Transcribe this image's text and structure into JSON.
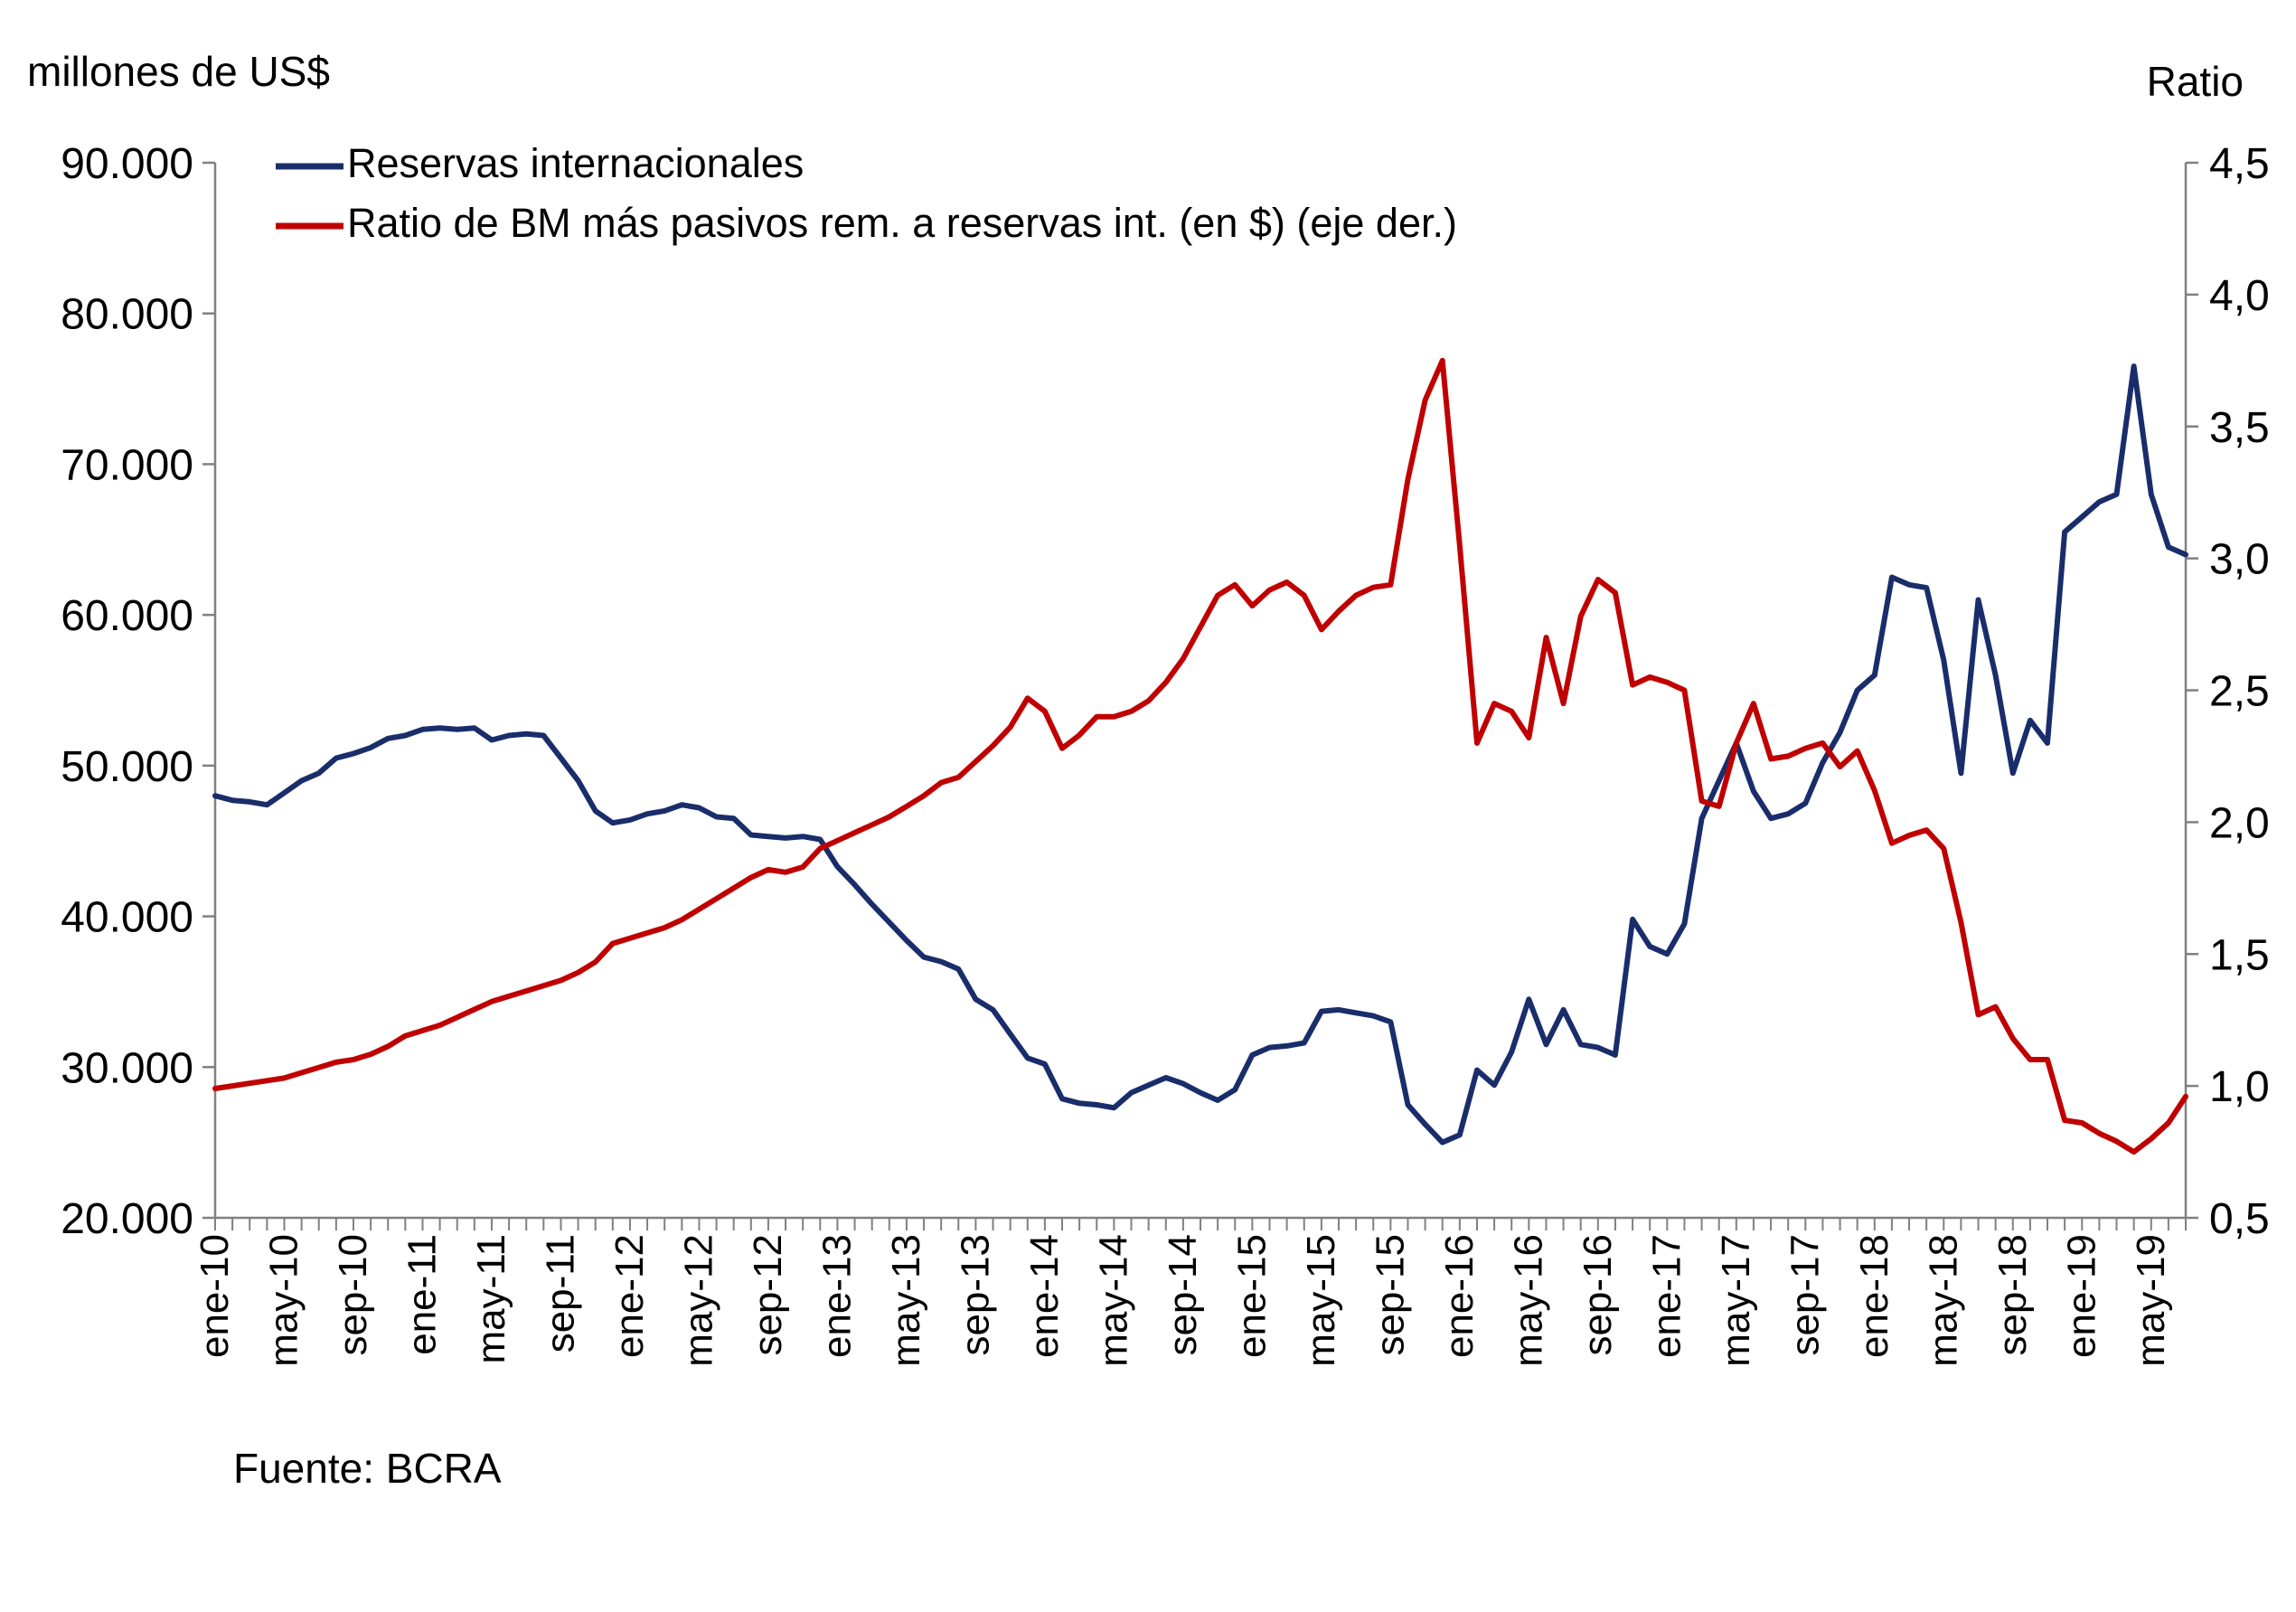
{
  "chart_data": {
    "type": "line",
    "left_axis_label": "millones de US$",
    "right_axis_label": "Ratio",
    "ylim_left": [
      20000,
      90000
    ],
    "ylim_right": [
      0.5,
      4.5
    ],
    "yticks_left": [
      "90.000",
      "80.000",
      "70.000",
      "60.000",
      "50.000",
      "40.000",
      "30.000",
      "20.000"
    ],
    "yticks_right": [
      "4,5",
      "4,0",
      "3,5",
      "3,0",
      "2,5",
      "2,0",
      "1,5",
      "1,0",
      "0,5"
    ],
    "x_range": [
      "2010-01",
      "2019-07"
    ],
    "xticks": [
      "ene-10",
      "may-10",
      "sep-10",
      "ene-11",
      "may-11",
      "sep-11",
      "ene-12",
      "may-12",
      "sep-12",
      "ene-13",
      "may-13",
      "sep-13",
      "ene-14",
      "may-14",
      "sep-14",
      "ene-15",
      "may-15",
      "sep-15",
      "ene-16",
      "may-16",
      "sep-16",
      "ene-17",
      "may-17",
      "sep-17",
      "ene-18",
      "may-18",
      "sep-18",
      "ene-19",
      "may-19"
    ],
    "legend_position": "top-left",
    "grid": false,
    "series": [
      {
        "name": "Reservas internacionales",
        "axis": "left",
        "color": "#1a2d6b",
        "points": [
          [
            "2010-01",
            48000
          ],
          [
            "2010-02",
            47700
          ],
          [
            "2010-03",
            47600
          ],
          [
            "2010-04",
            47400
          ],
          [
            "2010-05",
            48200
          ],
          [
            "2010-06",
            49000
          ],
          [
            "2010-07",
            49500
          ],
          [
            "2010-08",
            50500
          ],
          [
            "2010-09",
            50800
          ],
          [
            "2010-10",
            51200
          ],
          [
            "2010-11",
            51800
          ],
          [
            "2010-12",
            52000
          ],
          [
            "2011-01",
            52400
          ],
          [
            "2011-02",
            52500
          ],
          [
            "2011-03",
            52400
          ],
          [
            "2011-04",
            52500
          ],
          [
            "2011-05",
            51700
          ],
          [
            "2011-06",
            52000
          ],
          [
            "2011-07",
            52100
          ],
          [
            "2011-08",
            52000
          ],
          [
            "2011-09",
            50500
          ],
          [
            "2011-10",
            49000
          ],
          [
            "2011-11",
            47000
          ],
          [
            "2011-12",
            46200
          ],
          [
            "2012-01",
            46400
          ],
          [
            "2012-02",
            46800
          ],
          [
            "2012-03",
            47000
          ],
          [
            "2012-04",
            47400
          ],
          [
            "2012-05",
            47200
          ],
          [
            "2012-06",
            46600
          ],
          [
            "2012-07",
            46500
          ],
          [
            "2012-08",
            45400
          ],
          [
            "2012-09",
            45300
          ],
          [
            "2012-10",
            45200
          ],
          [
            "2012-11",
            45300
          ],
          [
            "2012-12",
            45100
          ],
          [
            "2013-01",
            43300
          ],
          [
            "2013-02",
            42100
          ],
          [
            "2013-03",
            40800
          ],
          [
            "2013-04",
            39600
          ],
          [
            "2013-05",
            38400
          ],
          [
            "2013-06",
            37300
          ],
          [
            "2013-07",
            37000
          ],
          [
            "2013-08",
            36500
          ],
          [
            "2013-09",
            34500
          ],
          [
            "2013-10",
            33800
          ],
          [
            "2013-11",
            32200
          ],
          [
            "2013-12",
            30600
          ],
          [
            "2014-01",
            30200
          ],
          [
            "2014-02",
            27900
          ],
          [
            "2014-03",
            27600
          ],
          [
            "2014-04",
            27500
          ],
          [
            "2014-05",
            27300
          ],
          [
            "2014-06",
            28300
          ],
          [
            "2014-07",
            28800
          ],
          [
            "2014-08",
            29300
          ],
          [
            "2014-09",
            28900
          ],
          [
            "2014-10",
            28300
          ],
          [
            "2014-11",
            27800
          ],
          [
            "2014-12",
            28500
          ],
          [
            "2015-01",
            30800
          ],
          [
            "2015-02",
            31300
          ],
          [
            "2015-03",
            31400
          ],
          [
            "2015-04",
            31600
          ],
          [
            "2015-05",
            33700
          ],
          [
            "2015-06",
            33800
          ],
          [
            "2015-07",
            33600
          ],
          [
            "2015-08",
            33400
          ],
          [
            "2015-09",
            33000
          ],
          [
            "2015-10",
            27500
          ],
          [
            "2015-11",
            26200
          ],
          [
            "2015-12",
            25000
          ],
          [
            "2016-01",
            25500
          ],
          [
            "2016-02",
            29800
          ],
          [
            "2016-03",
            28800
          ],
          [
            "2016-04",
            31000
          ],
          [
            "2016-05",
            34500
          ],
          [
            "2016-06",
            31500
          ],
          [
            "2016-07",
            33800
          ],
          [
            "2016-08",
            31500
          ],
          [
            "2016-09",
            31300
          ],
          [
            "2016-10",
            30800
          ],
          [
            "2016-11",
            39800
          ],
          [
            "2016-12",
            38000
          ],
          [
            "2017-01",
            37500
          ],
          [
            "2017-02",
            39500
          ],
          [
            "2017-03",
            46500
          ],
          [
            "2017-04",
            49000
          ],
          [
            "2017-05",
            51500
          ],
          [
            "2017-06",
            48300
          ],
          [
            "2017-07",
            46500
          ],
          [
            "2017-08",
            46800
          ],
          [
            "2017-09",
            47500
          ],
          [
            "2017-10",
            50200
          ],
          [
            "2017-11",
            52200
          ],
          [
            "2017-12",
            55000
          ],
          [
            "2018-01",
            56000
          ],
          [
            "2018-02",
            62500
          ],
          [
            "2018-03",
            62000
          ],
          [
            "2018-04",
            61800
          ],
          [
            "2018-05",
            57000
          ],
          [
            "2018-06",
            49500
          ],
          [
            "2018-07",
            61000
          ],
          [
            "2018-08",
            56000
          ],
          [
            "2018-09",
            49500
          ],
          [
            "2018-10",
            53000
          ],
          [
            "2018-11",
            51500
          ],
          [
            "2018-12",
            65500
          ],
          [
            "2019-01",
            66500
          ],
          [
            "2019-02",
            67500
          ],
          [
            "2019-03",
            68000
          ],
          [
            "2019-04",
            76500
          ],
          [
            "2019-05",
            68000
          ],
          [
            "2019-06",
            64500
          ],
          [
            "2019-07",
            64000
          ]
        ]
      },
      {
        "name": "Ratio de BM más pasivos rem. a reservas int. (en $) (eje der.)",
        "axis": "right",
        "color": "#c00000",
        "points": [
          [
            "2010-01",
            0.99
          ],
          [
            "2010-02",
            1.0
          ],
          [
            "2010-03",
            1.01
          ],
          [
            "2010-04",
            1.02
          ],
          [
            "2010-05",
            1.03
          ],
          [
            "2010-06",
            1.05
          ],
          [
            "2010-07",
            1.07
          ],
          [
            "2010-08",
            1.09
          ],
          [
            "2010-09",
            1.1
          ],
          [
            "2010-10",
            1.12
          ],
          [
            "2010-11",
            1.15
          ],
          [
            "2010-12",
            1.19
          ],
          [
            "2011-01",
            1.21
          ],
          [
            "2011-02",
            1.23
          ],
          [
            "2011-03",
            1.26
          ],
          [
            "2011-04",
            1.29
          ],
          [
            "2011-05",
            1.32
          ],
          [
            "2011-06",
            1.34
          ],
          [
            "2011-07",
            1.36
          ],
          [
            "2011-08",
            1.38
          ],
          [
            "2011-09",
            1.4
          ],
          [
            "2011-10",
            1.43
          ],
          [
            "2011-11",
            1.47
          ],
          [
            "2011-12",
            1.54
          ],
          [
            "2012-01",
            1.56
          ],
          [
            "2012-02",
            1.58
          ],
          [
            "2012-03",
            1.6
          ],
          [
            "2012-04",
            1.63
          ],
          [
            "2012-05",
            1.67
          ],
          [
            "2012-06",
            1.71
          ],
          [
            "2012-07",
            1.75
          ],
          [
            "2012-08",
            1.79
          ],
          [
            "2012-09",
            1.82
          ],
          [
            "2012-10",
            1.81
          ],
          [
            "2012-11",
            1.83
          ],
          [
            "2012-12",
            1.9
          ],
          [
            "2013-01",
            1.93
          ],
          [
            "2013-02",
            1.96
          ],
          [
            "2013-03",
            1.99
          ],
          [
            "2013-04",
            2.02
          ],
          [
            "2013-05",
            2.06
          ],
          [
            "2013-06",
            2.1
          ],
          [
            "2013-07",
            2.15
          ],
          [
            "2013-08",
            2.17
          ],
          [
            "2013-09",
            2.23
          ],
          [
            "2013-10",
            2.29
          ],
          [
            "2013-11",
            2.36
          ],
          [
            "2013-12",
            2.47
          ],
          [
            "2014-01",
            2.42
          ],
          [
            "2014-02",
            2.28
          ],
          [
            "2014-03",
            2.33
          ],
          [
            "2014-04",
            2.4
          ],
          [
            "2014-05",
            2.4
          ],
          [
            "2014-06",
            2.42
          ],
          [
            "2014-07",
            2.46
          ],
          [
            "2014-08",
            2.53
          ],
          [
            "2014-09",
            2.62
          ],
          [
            "2014-10",
            2.74
          ],
          [
            "2014-11",
            2.86
          ],
          [
            "2014-12",
            2.9
          ],
          [
            "2015-01",
            2.82
          ],
          [
            "2015-02",
            2.88
          ],
          [
            "2015-03",
            2.91
          ],
          [
            "2015-04",
            2.86
          ],
          [
            "2015-05",
            2.73
          ],
          [
            "2015-06",
            2.8
          ],
          [
            "2015-07",
            2.86
          ],
          [
            "2015-08",
            2.89
          ],
          [
            "2015-09",
            2.9
          ],
          [
            "2015-10",
            3.3
          ],
          [
            "2015-11",
            3.6
          ],
          [
            "2015-12",
            3.75
          ],
          [
            "2016-01",
            3.05
          ],
          [
            "2016-02",
            2.3
          ],
          [
            "2016-03",
            2.45
          ],
          [
            "2016-04",
            2.42
          ],
          [
            "2016-05",
            2.32
          ],
          [
            "2016-06",
            2.7
          ],
          [
            "2016-07",
            2.45
          ],
          [
            "2016-08",
            2.78
          ],
          [
            "2016-09",
            2.92
          ],
          [
            "2016-10",
            2.87
          ],
          [
            "2016-11",
            2.52
          ],
          [
            "2016-12",
            2.55
          ],
          [
            "2017-01",
            2.53
          ],
          [
            "2017-02",
            2.5
          ],
          [
            "2017-03",
            2.08
          ],
          [
            "2017-04",
            2.06
          ],
          [
            "2017-05",
            2.3
          ],
          [
            "2017-06",
            2.45
          ],
          [
            "2017-07",
            2.24
          ],
          [
            "2017-08",
            2.25
          ],
          [
            "2017-09",
            2.28
          ],
          [
            "2017-10",
            2.3
          ],
          [
            "2017-11",
            2.21
          ],
          [
            "2017-12",
            2.27
          ],
          [
            "2018-01",
            2.12
          ],
          [
            "2018-02",
            1.92
          ],
          [
            "2018-03",
            1.95
          ],
          [
            "2018-04",
            1.97
          ],
          [
            "2018-05",
            1.9
          ],
          [
            "2018-06",
            1.62
          ],
          [
            "2018-07",
            1.27
          ],
          [
            "2018-08",
            1.3
          ],
          [
            "2018-09",
            1.18
          ],
          [
            "2018-10",
            1.1
          ],
          [
            "2018-11",
            1.1
          ],
          [
            "2018-12",
            0.87
          ],
          [
            "2019-01",
            0.86
          ],
          [
            "2019-02",
            0.82
          ],
          [
            "2019-03",
            0.79
          ],
          [
            "2019-04",
            0.75
          ],
          [
            "2019-05",
            0.8
          ],
          [
            "2019-06",
            0.86
          ],
          [
            "2019-07",
            0.96
          ]
        ]
      }
    ],
    "source": "Fuente: BCRA"
  }
}
